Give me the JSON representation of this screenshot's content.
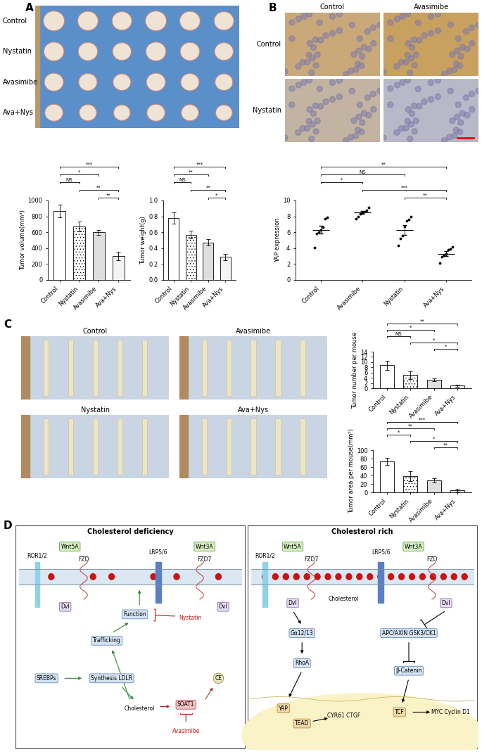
{
  "panel_labels": [
    "A",
    "B",
    "C",
    "D"
  ],
  "photo_A": {
    "rows": [
      "Control",
      "Nystatin",
      "Avasimibe",
      "Ava+Nys"
    ]
  },
  "ihc_B": {
    "columns": [
      "Control",
      "Avasimibe"
    ],
    "rows": [
      "Control",
      "Nystatin"
    ]
  },
  "photo_C": {
    "panels": [
      "Control",
      "Avasimibe",
      "Nystatin",
      "Ava+Nys"
    ]
  },
  "chart_data": [
    {
      "type": "bar",
      "ylabel": "Tumor volume(mm³)",
      "categories": [
        "Control",
        "Nystatin",
        "Avasimibe",
        "Ava+Nys"
      ],
      "values": [
        865,
        675,
        600,
        300
      ],
      "errors": [
        80,
        60,
        30,
        55
      ],
      "colors": [
        "#ffffff",
        "#ffffff",
        "#dedede",
        "#f4f4f4"
      ],
      "ylim": [
        0,
        1000
      ],
      "yticks": [
        0,
        200,
        400,
        600,
        800,
        1000
      ],
      "significance": [
        {
          "pair": [
            2,
            3
          ],
          "label": "**"
        },
        {
          "pair": [
            1,
            3
          ],
          "label": "**"
        },
        {
          "pair": [
            0,
            1
          ],
          "label": "NS"
        },
        {
          "pair": [
            0,
            2
          ],
          "label": "*"
        },
        {
          "pair": [
            0,
            3
          ],
          "label": "***"
        }
      ]
    },
    {
      "type": "bar",
      "ylabel": "Tumor weight(g)",
      "categories": [
        "Control",
        "Nystatin",
        "Avasimibe",
        "Ava+Nys"
      ],
      "values": [
        0.78,
        0.57,
        0.47,
        0.29
      ],
      "errors": [
        0.07,
        0.05,
        0.04,
        0.04
      ],
      "colors": [
        "#ffffff",
        "#ffffff",
        "#dedede",
        "#f4f4f4"
      ],
      "ylim": [
        0.0,
        1.0
      ],
      "yticks": [
        0.0,
        0.2,
        0.4,
        0.6,
        0.8,
        1.0
      ],
      "significance": [
        {
          "pair": [
            2,
            3
          ],
          "label": "*"
        },
        {
          "pair": [
            1,
            3
          ],
          "label": "**"
        },
        {
          "pair": [
            0,
            1
          ],
          "label": "NS"
        },
        {
          "pair": [
            0,
            2
          ],
          "label": "**"
        },
        {
          "pair": [
            0,
            3
          ],
          "label": "***"
        }
      ]
    },
    {
      "type": "scatter",
      "ylabel": "YAP expression",
      "categories": [
        "Control",
        "Avasimibe",
        "Nystatin",
        "Ava+Nys"
      ],
      "values": [
        6.3,
        8.5,
        6.3,
        3.3
      ],
      "errors": [
        0.5,
        0.2,
        0.6,
        0.3
      ],
      "points": [
        [
          4.1,
          5.8,
          6.0,
          6.3,
          6.6,
          7.7,
          7.9
        ],
        [
          7.7,
          8.0,
          8.3,
          8.5,
          8.6,
          8.8,
          9.1
        ],
        [
          4.3,
          5.2,
          5.6,
          6.7,
          7.4,
          7.6,
          8.0
        ],
        [
          2.1,
          2.9,
          3.1,
          3.3,
          3.8,
          3.9,
          4.2
        ]
      ],
      "ylim": [
        0,
        10
      ],
      "yticks": [
        0,
        2,
        4,
        6,
        8,
        10
      ],
      "significance": [
        {
          "pair": [
            2,
            3
          ],
          "label": "**"
        },
        {
          "pair": [
            1,
            3
          ],
          "label": "***"
        },
        {
          "pair": [
            0,
            1
          ],
          "label": "*"
        },
        {
          "pair": [
            0,
            2
          ],
          "label": "NS"
        },
        {
          "pair": [
            0,
            3
          ],
          "label": "**"
        }
      ]
    },
    {
      "type": "bar",
      "ylabel": "Tumor number per mouse",
      "categories": [
        "Control",
        "Nystatin",
        "Avasimibe",
        "Ava+Nys"
      ],
      "values": [
        8.8,
        5.0,
        3.2,
        1.0
      ],
      "errors": [
        1.7,
        1.5,
        0.5,
        0.4
      ],
      "colors": [
        "#ffffff",
        "#ffffff",
        "#dedede",
        "#f4f4f4"
      ],
      "ylim": [
        0,
        14
      ],
      "yticks": [
        0,
        2,
        4,
        6,
        8,
        10,
        12,
        14
      ],
      "significance": [
        {
          "pair": [
            2,
            3
          ],
          "label": "*"
        },
        {
          "pair": [
            1,
            3
          ],
          "label": "*"
        },
        {
          "pair": [
            0,
            1
          ],
          "label": "NS"
        },
        {
          "pair": [
            0,
            2
          ],
          "label": "*"
        },
        {
          "pair": [
            0,
            3
          ],
          "label": "**"
        }
      ]
    },
    {
      "type": "bar",
      "ylabel": "Tumor area per mouse(mm²)",
      "categories": [
        "Control",
        "Nystatin",
        "Avasimibe",
        "Ava+Nys"
      ],
      "values": [
        73,
        38,
        28,
        5
      ],
      "errors": [
        8,
        12,
        5,
        3
      ],
      "colors": [
        "#ffffff",
        "#ffffff",
        "#dedede",
        "#f4f4f4"
      ],
      "ylim": [
        0,
        100
      ],
      "yticks": [
        0,
        20,
        40,
        60,
        80,
        100
      ],
      "significance": [
        {
          "pair": [
            2,
            3
          ],
          "label": "**"
        },
        {
          "pair": [
            1,
            3
          ],
          "label": "*"
        },
        {
          "pair": [
            0,
            1
          ],
          "label": "*"
        },
        {
          "pair": [
            0,
            2
          ],
          "label": "**"
        },
        {
          "pair": [
            0,
            3
          ],
          "label": "***"
        }
      ]
    }
  ],
  "diagram": {
    "left_title": "Cholesterol deficiency",
    "right_title": "Cholesterol rich",
    "left_nodes": [
      "ROR1/2",
      "Wnt5A",
      "FZD",
      "LRP5/6",
      "Wnt3A",
      "FZD7",
      "Dvl",
      "Function",
      "Nystatin",
      "Trafficking",
      "SREBPs",
      "Synthesis LDLR",
      "Cholesterol",
      "SOAT1",
      "CE",
      "Avasimibe",
      "Dvl"
    ],
    "right_nodes": [
      "ROR1/2",
      "Wnt5A",
      "FZD7",
      "Dvl",
      "Cholesterol",
      "LRP5/6",
      "Wnt3A",
      "FZD",
      "Dvl",
      "Gα12/13",
      "RhoA",
      "APC/AXIN GSK3/CK1",
      "β-Catenin",
      "TCF",
      "MYC Cyclin D1",
      "YAP",
      "TEAD",
      "CYR61 CTGF"
    ]
  }
}
